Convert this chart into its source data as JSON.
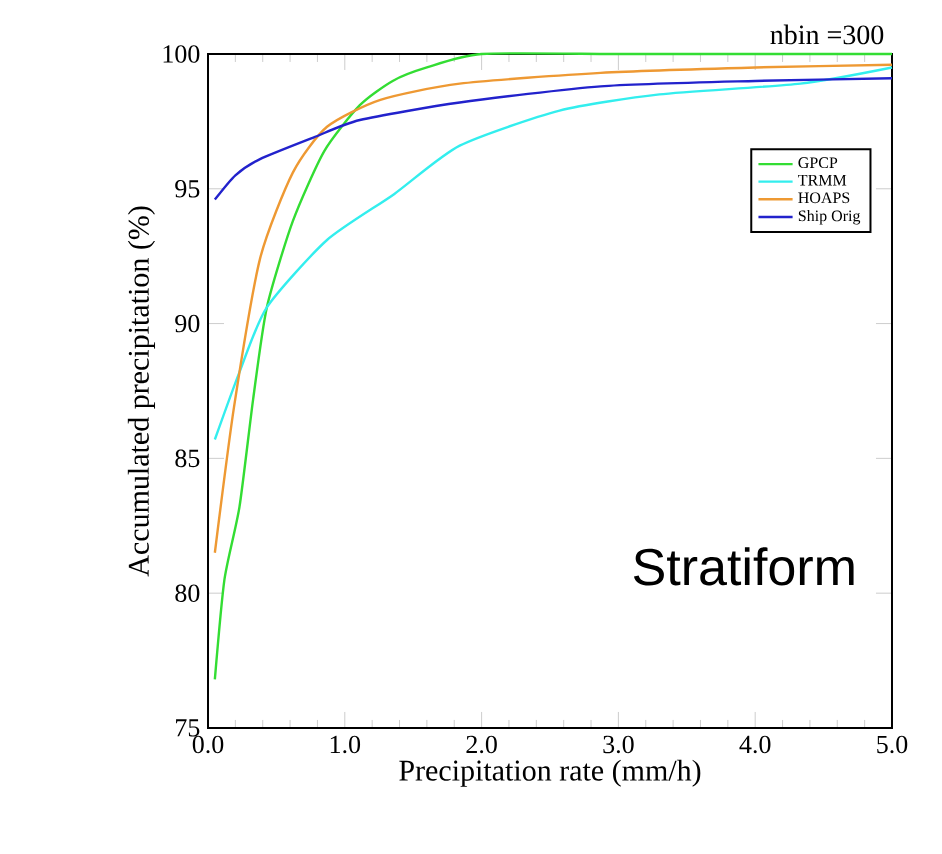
{
  "chart_data": {
    "type": "line",
    "xlabel": "Precipitation rate (mm/h)",
    "ylabel": "Accumulated precipitation (%)",
    "annotations": [
      "nbin =300",
      "Stratiform"
    ],
    "xlim": [
      0,
      5
    ],
    "ylim": [
      75,
      100
    ],
    "xticks": [
      {
        "value": 0,
        "label": "0.0"
      },
      {
        "value": 1,
        "label": "1.0"
      },
      {
        "value": 2,
        "label": "2.0"
      },
      {
        "value": 3,
        "label": "3.0"
      },
      {
        "value": 4,
        "label": "4.0"
      },
      {
        "value": 5,
        "label": "5.0"
      }
    ],
    "yticks": [
      75,
      80,
      85,
      90,
      95,
      100
    ],
    "grid": false,
    "legend": "right",
    "marker": "none",
    "line_style": "solid",
    "series": [
      {
        "name": "GPCP",
        "color": "#33dd33",
        "x": [
          0.05,
          0.12,
          0.23,
          0.33,
          0.43,
          0.62,
          0.85,
          1.11,
          1.35,
          1.6,
          2.0,
          3.0,
          4.0,
          5.0
        ],
        "values": [
          76.8,
          80.5,
          83.2,
          87.2,
          90.6,
          93.8,
          96.4,
          98.1,
          99.0,
          99.5,
          100,
          100,
          100,
          100
        ]
      },
      {
        "name": "TRMM",
        "color": "#33eeee",
        "x": [
          0.05,
          0.23,
          0.43,
          0.87,
          1.36,
          1.84,
          2.57,
          3.3,
          4.33,
          5.0
        ],
        "values": [
          85.7,
          88.2,
          90.6,
          93.1,
          94.8,
          96.6,
          97.9,
          98.5,
          98.9,
          99.5
        ]
      },
      {
        "name": "HOAPS",
        "color": "#ee9933",
        "x": [
          0.05,
          0.19,
          0.38,
          0.62,
          0.87,
          1.26,
          1.84,
          2.87,
          4.0,
          5.0
        ],
        "values": [
          81.5,
          86.9,
          92.4,
          95.6,
          97.3,
          98.3,
          98.9,
          99.3,
          99.5,
          99.6
        ]
      },
      {
        "name": "Ship Orig",
        "color": "#2222cc",
        "x": [
          0.05,
          0.2,
          0.38,
          0.77,
          1.11,
          1.84,
          2.87,
          4.0,
          5.0
        ],
        "values": [
          94.6,
          95.5,
          96.1,
          96.9,
          97.55,
          98.2,
          98.8,
          99.0,
          99.1
        ]
      }
    ]
  }
}
